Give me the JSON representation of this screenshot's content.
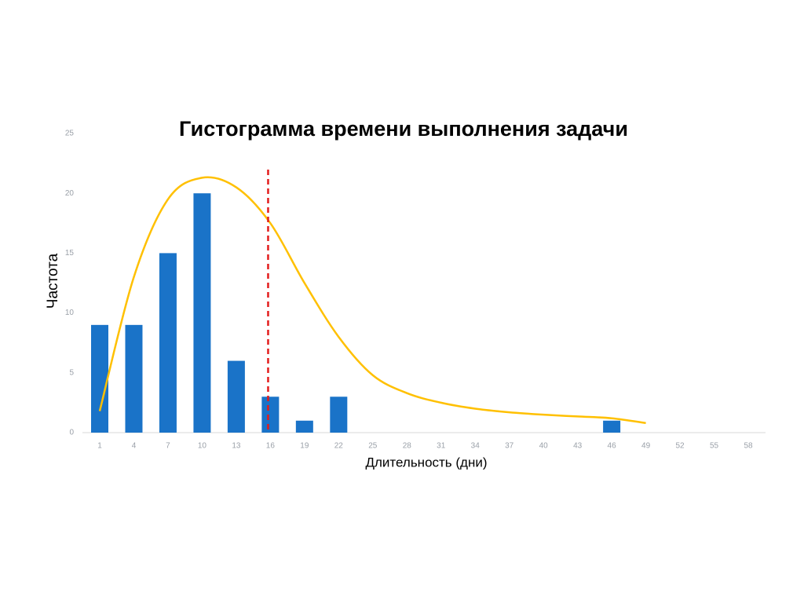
{
  "chart_data": {
    "type": "bar",
    "title": "Гистограмма времени выполнения задачи",
    "x_label": "Длительность (дни)",
    "y_label": "Частота",
    "categories": [
      "1",
      "4",
      "7",
      "10",
      "13",
      "16",
      "19",
      "22",
      "25",
      "28",
      "31",
      "34",
      "37",
      "40",
      "43",
      "46",
      "49",
      "52",
      "55",
      "58"
    ],
    "series": [
      {
        "type": "bar",
        "color": "#1a73c8",
        "values": [
          9,
          9,
          15,
          20,
          6,
          3,
          1,
          3,
          0,
          0,
          0,
          0,
          0,
          0,
          0,
          1,
          0,
          0,
          0,
          0
        ]
      },
      {
        "type": "line",
        "color": "#ffc000",
        "values": [
          1.8,
          13,
          19.5,
          21.3,
          20.5,
          17.5,
          12.5,
          8,
          4.8,
          3.3,
          2.5,
          2.0,
          1.7,
          1.5,
          1.35,
          1.2,
          0.8,
          null,
          null,
          null
        ]
      }
    ],
    "reference_line": {
      "x": 15.8,
      "color": "#e31c1c"
    },
    "ylim": [
      0,
      25
    ],
    "yticks": [
      0,
      5,
      10,
      15,
      20,
      25
    ],
    "grid": false
  }
}
